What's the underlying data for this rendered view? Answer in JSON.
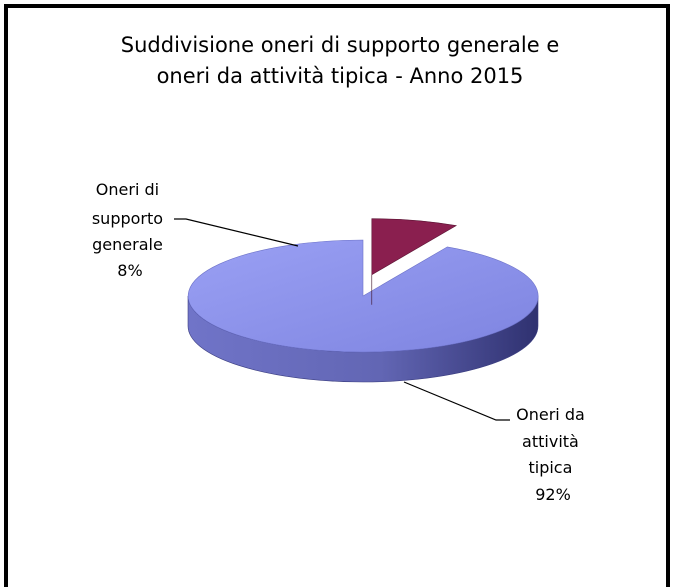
{
  "chart_data": {
    "type": "pie",
    "title_lines": [
      "Suddivisione oneri di supporto generale e",
      "oneri da attività tipica - Anno 2015"
    ],
    "slices": [
      {
        "label_lines": [
          "Oneri da",
          "attività",
          "tipica",
          "92%"
        ],
        "value": 92,
        "color": "#8f93ea",
        "side_color": "#4c4f96"
      },
      {
        "label_lines": [
          "Oneri di",
          "supporto",
          "generale",
          "8%"
        ],
        "value": 8,
        "color": "#8a1f4f",
        "side_color": "#4a0f2a",
        "exploded": true
      }
    ],
    "legend": "none",
    "style": "3d-pie"
  }
}
